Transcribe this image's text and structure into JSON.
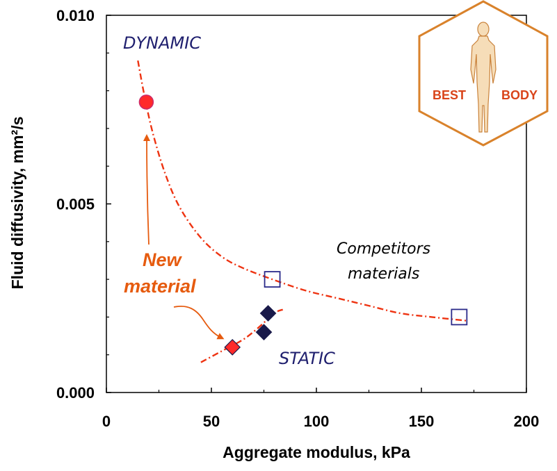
{
  "chart_data": {
    "type": "scatter",
    "xlabel": "Aggregate modulus, kPa",
    "ylabel": "Fluid diffusivity, mm²/s",
    "xlim": [
      0,
      200
    ],
    "ylim": [
      0,
      0.01
    ],
    "x_ticks": [
      "0",
      "50",
      "100",
      "150",
      "200"
    ],
    "y_ticks": [
      "0.000",
      "0.005",
      "0.010"
    ],
    "grid": false,
    "series": [
      {
        "points": [
          {
            "x": 19,
            "y": 0.0077
          }
        ],
        "marker": "circle",
        "color": "#ff2a2a"
      },
      {
        "points": [
          {
            "x": 60,
            "y": 0.0012
          }
        ],
        "marker": "diamond",
        "color": "#ff2a2a"
      },
      {
        "points": [
          {
            "x": 77,
            "y": 0.0021
          },
          {
            "x": 75,
            "y": 0.0016
          }
        ],
        "marker": "diamond",
        "color": "#1a1a4a"
      },
      {
        "points": [
          {
            "x": 79,
            "y": 0.003
          },
          {
            "x": 168,
            "y": 0.002
          }
        ],
        "marker": "open-square",
        "color": "#2a2a8a"
      }
    ],
    "curves": [
      {
        "style": "dash-dot",
        "color": "#ee3311",
        "points": [
          {
            "x": 15,
            "y": 0.0088
          },
          {
            "x": 18,
            "y": 0.0079
          },
          {
            "x": 22,
            "y": 0.0069
          },
          {
            "x": 28,
            "y": 0.0058
          },
          {
            "x": 35,
            "y": 0.0049
          },
          {
            "x": 45,
            "y": 0.0041
          },
          {
            "x": 55,
            "y": 0.0036
          },
          {
            "x": 65,
            "y": 0.0033
          },
          {
            "x": 79,
            "y": 0.003
          },
          {
            "x": 95,
            "y": 0.0027
          },
          {
            "x": 110,
            "y": 0.0025
          },
          {
            "x": 125,
            "y": 0.0023
          },
          {
            "x": 140,
            "y": 0.0021
          },
          {
            "x": 155,
            "y": 0.002
          },
          {
            "x": 172,
            "y": 0.0019
          }
        ]
      },
      {
        "style": "dash-dot",
        "color": "#ee3311",
        "points": [
          {
            "x": 45,
            "y": 0.0008
          },
          {
            "x": 55,
            "y": 0.0011
          },
          {
            "x": 65,
            "y": 0.0014
          },
          {
            "x": 72,
            "y": 0.0017
          },
          {
            "x": 80,
            "y": 0.0021
          },
          {
            "x": 84,
            "y": 0.0022
          }
        ]
      }
    ],
    "annotations": {
      "dynamic": "DYNAMIC",
      "static": "STATIC",
      "competitors_line1": "Competitors",
      "competitors_line2": "materials",
      "new_material_line1": "New",
      "new_material_line2": "material"
    }
  },
  "logo": {
    "left_word": "BEST",
    "right_word": "BODY",
    "color": "#d9822b",
    "text_color": "#d9441a"
  }
}
